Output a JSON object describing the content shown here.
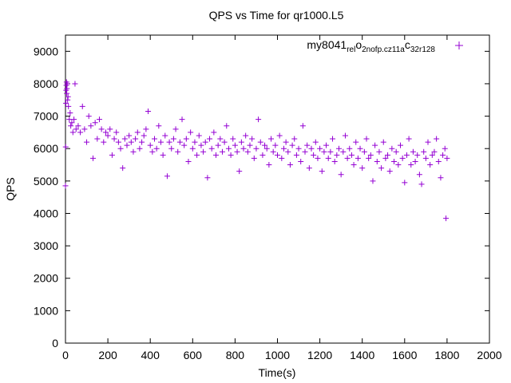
{
  "chart_data": {
    "type": "scatter",
    "title": "QPS vs Time for qr1000.L5",
    "xlabel": "Time(s)",
    "ylabel": "QPS",
    "xlim": [
      0,
      2000
    ],
    "ylim": [
      0,
      9500
    ],
    "xticks": [
      "0",
      "200",
      "400",
      "600",
      "800",
      "1000",
      "1200",
      "1400",
      "1600",
      "1800",
      "2000"
    ],
    "yticks": [
      "0",
      "1000",
      "2000",
      "3000",
      "4000",
      "5000",
      "6000",
      "7000",
      "8000",
      "9000"
    ],
    "grid": false,
    "legend_position": "top-right",
    "marker": "+",
    "series": [
      {
        "name": "my8041_rel_o2nofp.cz11a_c32r128",
        "legend_parts": {
          "p1": "my8041",
          "s1": "rel",
          "p2": "o",
          "s2": "2nofp.cz11a",
          "p3": "c",
          "s3": "32r128"
        },
        "color": "#9400d3",
        "points": [
          [
            0,
            4850
          ],
          [
            1,
            6050
          ],
          [
            2,
            7400
          ],
          [
            3,
            7800
          ],
          [
            4,
            7950
          ],
          [
            5,
            8050
          ],
          [
            6,
            7700
          ],
          [
            7,
            7850
          ],
          [
            8,
            8000
          ],
          [
            10,
            7500
          ],
          [
            12,
            7600
          ],
          [
            14,
            7300
          ],
          [
            18,
            6900
          ],
          [
            22,
            7100
          ],
          [
            25,
            6700
          ],
          [
            30,
            6800
          ],
          [
            35,
            6500
          ],
          [
            40,
            6900
          ],
          [
            45,
            8000
          ],
          [
            50,
            6600
          ],
          [
            60,
            6700
          ],
          [
            70,
            6500
          ],
          [
            80,
            7300
          ],
          [
            90,
            6600
          ],
          [
            100,
            6200
          ],
          [
            110,
            7000
          ],
          [
            120,
            6700
          ],
          [
            130,
            5700
          ],
          [
            140,
            6800
          ],
          [
            150,
            6300
          ],
          [
            160,
            6900
          ],
          [
            170,
            6600
          ],
          [
            180,
            6200
          ],
          [
            190,
            6500
          ],
          [
            200,
            6400
          ],
          [
            210,
            6600
          ],
          [
            220,
            5800
          ],
          [
            230,
            6300
          ],
          [
            240,
            6500
          ],
          [
            250,
            6200
          ],
          [
            260,
            6000
          ],
          [
            270,
            5400
          ],
          [
            280,
            6300
          ],
          [
            290,
            6100
          ],
          [
            300,
            6400
          ],
          [
            310,
            6200
          ],
          [
            320,
            5900
          ],
          [
            330,
            6300
          ],
          [
            340,
            6500
          ],
          [
            350,
            6000
          ],
          [
            360,
            6200
          ],
          [
            370,
            6400
          ],
          [
            380,
            6600
          ],
          [
            390,
            7150
          ],
          [
            400,
            6100
          ],
          [
            410,
            5900
          ],
          [
            420,
            6300
          ],
          [
            430,
            6000
          ],
          [
            440,
            6700
          ],
          [
            450,
            6200
          ],
          [
            460,
            5800
          ],
          [
            470,
            6400
          ],
          [
            480,
            5150
          ],
          [
            490,
            6200
          ],
          [
            500,
            6000
          ],
          [
            510,
            6300
          ],
          [
            520,
            6600
          ],
          [
            530,
            5900
          ],
          [
            540,
            6200
          ],
          [
            550,
            6900
          ],
          [
            560,
            6100
          ],
          [
            570,
            6300
          ],
          [
            580,
            5600
          ],
          [
            590,
            6500
          ],
          [
            600,
            6000
          ],
          [
            610,
            6200
          ],
          [
            620,
            5800
          ],
          [
            630,
            6400
          ],
          [
            640,
            6100
          ],
          [
            650,
            5900
          ],
          [
            660,
            6200
          ],
          [
            670,
            5100
          ],
          [
            680,
            6300
          ],
          [
            690,
            6000
          ],
          [
            700,
            6500
          ],
          [
            710,
            5800
          ],
          [
            720,
            6100
          ],
          [
            730,
            6300
          ],
          [
            740,
            5900
          ],
          [
            750,
            6200
          ],
          [
            760,
            6700
          ],
          [
            770,
            6000
          ],
          [
            780,
            5800
          ],
          [
            790,
            6300
          ],
          [
            800,
            6100
          ],
          [
            810,
            5900
          ],
          [
            820,
            5300
          ],
          [
            830,
            6200
          ],
          [
            840,
            6000
          ],
          [
            850,
            6400
          ],
          [
            860,
            5900
          ],
          [
            870,
            6100
          ],
          [
            880,
            6300
          ],
          [
            890,
            5700
          ],
          [
            900,
            6000
          ],
          [
            910,
            6900
          ],
          [
            920,
            6200
          ],
          [
            930,
            5800
          ],
          [
            940,
            6100
          ],
          [
            950,
            6000
          ],
          [
            960,
            5500
          ],
          [
            970,
            6300
          ],
          [
            980,
            5900
          ],
          [
            990,
            6100
          ],
          [
            1000,
            5800
          ],
          [
            1010,
            6400
          ],
          [
            1020,
            5700
          ],
          [
            1030,
            6000
          ],
          [
            1040,
            6200
          ],
          [
            1050,
            5900
          ],
          [
            1060,
            5500
          ],
          [
            1070,
            6100
          ],
          [
            1080,
            6300
          ],
          [
            1090,
            5800
          ],
          [
            1100,
            6000
          ],
          [
            1110,
            5600
          ],
          [
            1120,
            6700
          ],
          [
            1130,
            5900
          ],
          [
            1140,
            6100
          ],
          [
            1150,
            5400
          ],
          [
            1160,
            6000
          ],
          [
            1170,
            5800
          ],
          [
            1180,
            6200
          ],
          [
            1190,
            5700
          ],
          [
            1200,
            6000
          ],
          [
            1210,
            5300
          ],
          [
            1220,
            5900
          ],
          [
            1230,
            6100
          ],
          [
            1240,
            5700
          ],
          [
            1250,
            5900
          ],
          [
            1260,
            6300
          ],
          [
            1270,
            5600
          ],
          [
            1280,
            5800
          ],
          [
            1290,
            6000
          ],
          [
            1300,
            5200
          ],
          [
            1310,
            5900
          ],
          [
            1320,
            6400
          ],
          [
            1330,
            5700
          ],
          [
            1340,
            6000
          ],
          [
            1350,
            5800
          ],
          [
            1360,
            5500
          ],
          [
            1370,
            6200
          ],
          [
            1380,
            5700
          ],
          [
            1390,
            6000
          ],
          [
            1400,
            5400
          ],
          [
            1410,
            5900
          ],
          [
            1420,
            6300
          ],
          [
            1430,
            5700
          ],
          [
            1440,
            5800
          ],
          [
            1450,
            5000
          ],
          [
            1460,
            6100
          ],
          [
            1470,
            5600
          ],
          [
            1480,
            5900
          ],
          [
            1490,
            5400
          ],
          [
            1500,
            6200
          ],
          [
            1510,
            5700
          ],
          [
            1520,
            5800
          ],
          [
            1530,
            5300
          ],
          [
            1540,
            6000
          ],
          [
            1550,
            5600
          ],
          [
            1560,
            5900
          ],
          [
            1570,
            5500
          ],
          [
            1580,
            6100
          ],
          [
            1590,
            5700
          ],
          [
            1600,
            4950
          ],
          [
            1610,
            5800
          ],
          [
            1620,
            6300
          ],
          [
            1630,
            5500
          ],
          [
            1640,
            5900
          ],
          [
            1650,
            5600
          ],
          [
            1660,
            5800
          ],
          [
            1670,
            5200
          ],
          [
            1680,
            4900
          ],
          [
            1690,
            5900
          ],
          [
            1700,
            5700
          ],
          [
            1710,
            6200
          ],
          [
            1720,
            5500
          ],
          [
            1730,
            5800
          ],
          [
            1740,
            5900
          ],
          [
            1750,
            6300
          ],
          [
            1760,
            5600
          ],
          [
            1770,
            5100
          ],
          [
            1780,
            5800
          ],
          [
            1790,
            6000
          ],
          [
            1795,
            3850
          ],
          [
            1800,
            5700
          ]
        ]
      }
    ]
  }
}
